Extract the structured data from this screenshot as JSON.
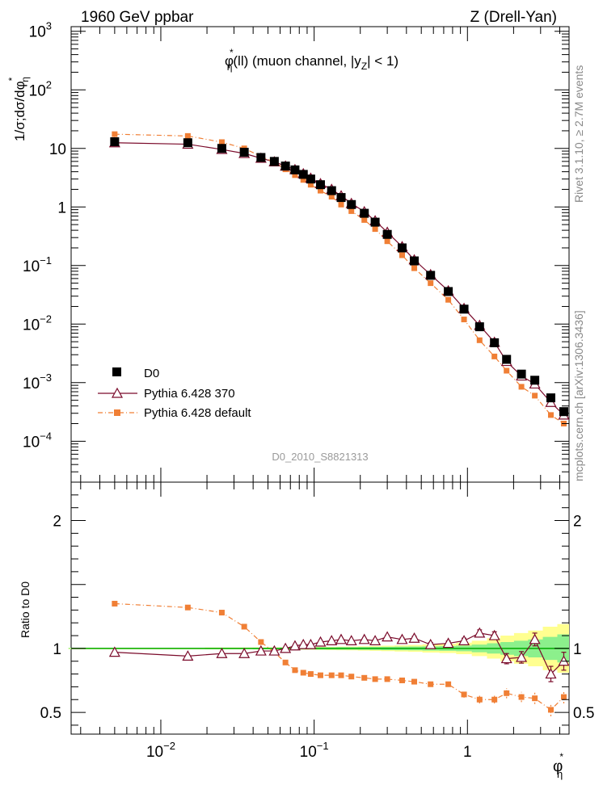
{
  "header": {
    "left": "1960 GeV ppbar",
    "right": "Z (Drell-Yan)"
  },
  "side_labels": {
    "top": "Rivet 3.1.10, ≥ 2.7M events",
    "bottom": "mcplots.cern.ch [arXiv:1306.3436]"
  },
  "watermark": "D0_2010_S8821313",
  "chart_data": [
    {
      "type": "scatter",
      "title": "φ*η(ll) (muon channel, |yZ| < 1)",
      "title_parts": {
        "phi": "φ",
        "star": "*",
        "eta": "η",
        "rest1": "(ll) (muon channel, |y",
        "Z": "Z",
        "rest2": "| < 1)"
      },
      "ylabel": "1/σ;dσ/dφ*η",
      "ylabel_parts": {
        "main": "1/σ;dσ/dφ",
        "star": "*",
        "eta": "η"
      },
      "x_scale": "log",
      "y_scale": "log",
      "xlim": [
        0.0026,
        4.6
      ],
      "ylim": [
        2e-05,
        1200
      ],
      "x_ticks": [
        {
          "value": 0.01,
          "base": "10",
          "exp": "−2"
        },
        {
          "value": 0.1,
          "base": "10",
          "exp": "−1"
        },
        {
          "value": 1,
          "base": "1",
          "exp": ""
        }
      ],
      "y_ticks": [
        {
          "value": 0.0001,
          "base": "10",
          "exp": "−4"
        },
        {
          "value": 0.001,
          "base": "10",
          "exp": "−3"
        },
        {
          "value": 0.01,
          "base": "10",
          "exp": "−2"
        },
        {
          "value": 0.1,
          "base": "10",
          "exp": "−1"
        },
        {
          "value": 1,
          "base": "1",
          "exp": ""
        },
        {
          "value": 10,
          "base": "10",
          "exp": ""
        },
        {
          "value": 100,
          "base": "10",
          "exp": "2"
        },
        {
          "value": 1000,
          "base": "10",
          "exp": "3"
        }
      ],
      "legend_position": "bottom-left",
      "x": [
        0.005,
        0.015,
        0.025,
        0.035,
        0.045,
        0.055,
        0.065,
        0.075,
        0.085,
        0.095,
        0.11,
        0.13,
        0.15,
        0.175,
        0.2125,
        0.25,
        0.3,
        0.375,
        0.45,
        0.575,
        0.75,
        0.95,
        1.2,
        1.5,
        1.8,
        2.25,
        2.75,
        3.5,
        4.25
      ],
      "series": [
        {
          "name": "D0",
          "values": [
            13,
            12.5,
            10,
            8.6,
            7.0,
            6.0,
            5.0,
            4.3,
            3.6,
            3.0,
            2.4,
            1.9,
            1.45,
            1.1,
            0.78,
            0.55,
            0.34,
            0.2,
            0.12,
            0.068,
            0.036,
            0.018,
            0.009,
            0.0048,
            0.0025,
            0.0014,
            0.0011,
            0.00055,
            0.00032
          ],
          "color": "#000000",
          "marker": "square"
        },
        {
          "name": "Pythia 6.428 370",
          "values": [
            12.5,
            11.8,
            9.6,
            8.2,
            6.8,
            5.9,
            5.0,
            4.35,
            3.7,
            3.1,
            2.5,
            2.0,
            1.55,
            1.15,
            0.83,
            0.58,
            0.37,
            0.21,
            0.125,
            0.07,
            0.037,
            0.0185,
            0.0095,
            0.0049,
            0.0023,
            0.0013,
            0.00095,
            0.00046,
            0.00028
          ],
          "color": "#7a0a2a",
          "marker": "triangle-open"
        },
        {
          "name": "Pythia 6.428 default",
          "values": [
            17.5,
            16.3,
            12.8,
            10.0,
            7.3,
            5.8,
            4.4,
            3.5,
            2.9,
            2.4,
            1.9,
            1.5,
            1.1,
            0.85,
            0.6,
            0.42,
            0.26,
            0.15,
            0.09,
            0.05,
            0.026,
            0.012,
            0.0053,
            0.0028,
            0.0016,
            0.00085,
            0.0006,
            0.00028,
            0.0002
          ],
          "color": "#f07f35",
          "marker": "square-small",
          "line_style": "dash-dot"
        }
      ]
    },
    {
      "type": "scatter",
      "ylabel": "Ratio to D0",
      "xlabel": "φ*η",
      "xlabel_parts": {
        "phi": "φ",
        "star": "*",
        "eta": "η"
      },
      "x_scale": "log",
      "xlim": [
        0.0026,
        4.6
      ],
      "ylim": [
        0.33,
        2.3
      ],
      "y_ticks": [
        {
          "value": 0.5,
          "label": "0.5"
        },
        {
          "value": 1,
          "label": "1"
        },
        {
          "value": 2,
          "label": "2"
        }
      ],
      "x": [
        0.005,
        0.015,
        0.025,
        0.035,
        0.045,
        0.055,
        0.065,
        0.075,
        0.085,
        0.095,
        0.11,
        0.13,
        0.15,
        0.175,
        0.2125,
        0.25,
        0.3,
        0.375,
        0.45,
        0.575,
        0.75,
        0.95,
        1.2,
        1.5,
        1.8,
        2.25,
        2.75,
        3.5,
        4.25
      ],
      "band_inner": [
        0.004,
        0.004,
        0.005,
        0.005,
        0.006,
        0.006,
        0.007,
        0.007,
        0.008,
        0.008,
        0.009,
        0.009,
        0.01,
        0.01,
        0.011,
        0.012,
        0.013,
        0.014,
        0.015,
        0.017,
        0.019,
        0.022,
        0.03,
        0.04,
        0.05,
        0.06,
        0.07,
        0.09,
        0.11
      ],
      "band_outer": [
        0.006,
        0.006,
        0.007,
        0.007,
        0.008,
        0.008,
        0.009,
        0.009,
        0.01,
        0.01,
        0.012,
        0.013,
        0.014,
        0.015,
        0.017,
        0.019,
        0.021,
        0.024,
        0.027,
        0.032,
        0.036,
        0.045,
        0.06,
        0.08,
        0.1,
        0.12,
        0.14,
        0.17,
        0.19
      ],
      "series": [
        {
          "name": "Pythia 6.428 370",
          "values": [
            0.97,
            0.94,
            0.96,
            0.96,
            0.98,
            0.98,
            1.0,
            1.02,
            1.03,
            1.03,
            1.05,
            1.06,
            1.07,
            1.06,
            1.07,
            1.06,
            1.09,
            1.07,
            1.08,
            1.03,
            1.04,
            1.06,
            1.12,
            1.1,
            0.92,
            0.93,
            1.07,
            0.8,
            0.9
          ],
          "errors": [
            0.005,
            0.005,
            0.005,
            0.005,
            0.006,
            0.006,
            0.006,
            0.006,
            0.007,
            0.007,
            0.008,
            0.008,
            0.009,
            0.009,
            0.01,
            0.011,
            0.012,
            0.013,
            0.015,
            0.016,
            0.018,
            0.02,
            0.025,
            0.03,
            0.04,
            0.045,
            0.05,
            0.06,
            0.07
          ],
          "color": "#7a0a2a",
          "marker": "triangle-open"
        },
        {
          "name": "Pythia 6.428 default",
          "values": [
            1.35,
            1.32,
            1.28,
            1.17,
            1.05,
            0.97,
            0.89,
            0.83,
            0.81,
            0.8,
            0.79,
            0.79,
            0.79,
            0.78,
            0.77,
            0.76,
            0.76,
            0.75,
            0.74,
            0.72,
            0.72,
            0.64,
            0.6,
            0.6,
            0.65,
            0.62,
            0.61,
            0.52,
            0.62
          ],
          "errors": [
            0.004,
            0.004,
            0.005,
            0.005,
            0.005,
            0.005,
            0.006,
            0.006,
            0.006,
            0.006,
            0.007,
            0.007,
            0.008,
            0.008,
            0.009,
            0.01,
            0.011,
            0.012,
            0.013,
            0.014,
            0.016,
            0.025,
            0.03,
            0.03,
            0.04,
            0.04,
            0.045,
            0.05,
            0.05
          ],
          "color": "#f07f35",
          "marker": "square-small",
          "line_style": "dash-dot"
        }
      ]
    }
  ],
  "colors": {
    "data": "#000000",
    "mc370": "#7a0a2a",
    "mcdefault": "#f07f35",
    "band_inner": "#8cf08c",
    "band_outer": "#ffff90",
    "ref_line": "#00aa00",
    "watermark": "#9a9a9a",
    "side_text": "#888888"
  }
}
